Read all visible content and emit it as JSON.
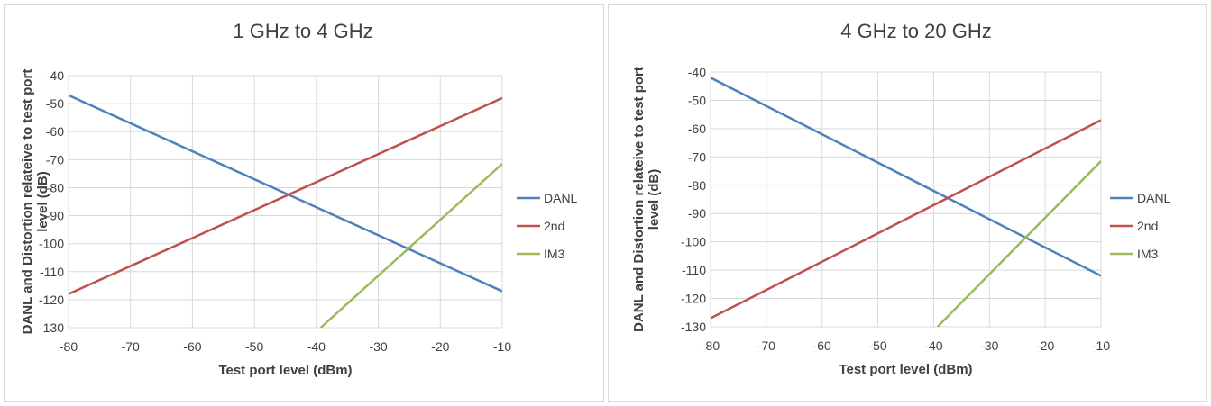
{
  "chart_data": [
    {
      "type": "line",
      "title": "1 GHz to 4 GHz",
      "xlabel": "Test port level (dBm)",
      "ylabel": "DANL  and Distortion relateive to test port level (dB)",
      "xlim": [
        -80,
        -10
      ],
      "ylim": [
        -130,
        -40
      ],
      "x_ticks": [
        -80,
        -70,
        -60,
        -50,
        -40,
        -30,
        -20,
        -10
      ],
      "y_ticks": [
        -40,
        -50,
        -60,
        -70,
        -80,
        -90,
        -100,
        -110,
        -120,
        -130
      ],
      "grid": true,
      "legend_position": "right",
      "series": [
        {
          "name": "DANL",
          "color": "#4f81bd",
          "points": [
            [
              -80,
              -47
            ],
            [
              -10,
              -117
            ]
          ]
        },
        {
          "name": "2nd",
          "color": "#c0504d",
          "points": [
            [
              -80,
              -118
            ],
            [
              -10,
              -48
            ]
          ]
        },
        {
          "name": "IM3",
          "color": "#9bbb59",
          "points": [
            [
              -39.3,
              -130
            ],
            [
              -10,
              -71.5
            ]
          ]
        }
      ]
    },
    {
      "type": "line",
      "title": "4 GHz to 20 GHz",
      "xlabel": "Test port level (dBm)",
      "ylabel": "DANL  and Distortion relateive to test port level (dB)",
      "xlim": [
        -80,
        -10
      ],
      "ylim": [
        -130,
        -40
      ],
      "x_ticks": [
        -80,
        -70,
        -60,
        -50,
        -40,
        -30,
        -20,
        -10
      ],
      "y_ticks": [
        -40,
        -50,
        -60,
        -70,
        -80,
        -90,
        -100,
        -110,
        -120,
        -130
      ],
      "grid": true,
      "legend_position": "right",
      "series": [
        {
          "name": "DANL",
          "color": "#4f81bd",
          "points": [
            [
              -80,
              -42
            ],
            [
              -10,
              -112
            ]
          ]
        },
        {
          "name": "2nd",
          "color": "#c0504d",
          "points": [
            [
              -80,
              -127
            ],
            [
              -10,
              -57
            ]
          ]
        },
        {
          "name": "IM3",
          "color": "#9bbb59",
          "points": [
            [
              -39.3,
              -130
            ],
            [
              -10,
              -71.5
            ]
          ]
        }
      ]
    }
  ]
}
